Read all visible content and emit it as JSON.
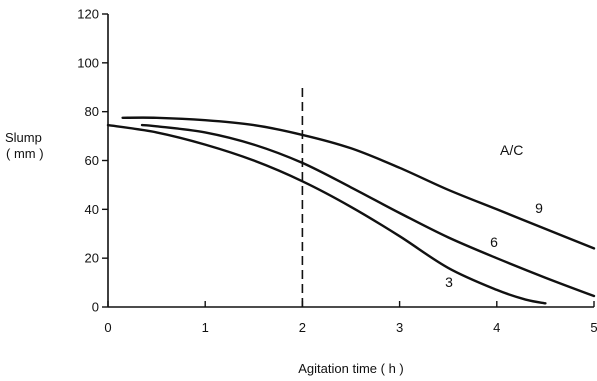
{
  "chart_data": {
    "type": "line",
    "xlabel": "Agitation time ( h )",
    "ylabel_line1": "Slump",
    "ylabel_line2": "( mm )",
    "xlim": [
      0,
      5
    ],
    "ylim": [
      0,
      120
    ],
    "xticks": [
      "0",
      "1",
      "2",
      "3",
      "4",
      "5"
    ],
    "yticks": [
      "0",
      "20",
      "40",
      "60",
      "80",
      "100",
      "120"
    ],
    "grid": false,
    "legend_title": "A/C",
    "reference_line": {
      "x": 2,
      "style": "dashed"
    },
    "series": [
      {
        "name": "9",
        "x": [
          0.15,
          0.5,
          1.0,
          1.5,
          2.0,
          2.5,
          3.0,
          3.5,
          4.0,
          4.5,
          5.0
        ],
        "y": [
          77.5,
          77.5,
          76.5,
          74.5,
          70.5,
          65.0,
          57.0,
          48.0,
          40.0,
          32.0,
          24.0
        ]
      },
      {
        "name": "6",
        "x": [
          0.35,
          0.5,
          1.0,
          1.5,
          2.0,
          2.5,
          3.0,
          3.5,
          4.0,
          4.5,
          5.0
        ],
        "y": [
          74.5,
          74.0,
          71.5,
          66.5,
          59.0,
          49.0,
          38.5,
          28.5,
          20.0,
          12.0,
          4.5
        ]
      },
      {
        "name": "3",
        "x": [
          0.0,
          0.5,
          1.0,
          1.5,
          2.0,
          2.5,
          3.0,
          3.5,
          4.0,
          4.3,
          4.5
        ],
        "y": [
          74.5,
          71.5,
          66.5,
          60.0,
          51.5,
          41.0,
          29.0,
          16.0,
          7.0,
          3.0,
          1.5
        ]
      }
    ]
  }
}
